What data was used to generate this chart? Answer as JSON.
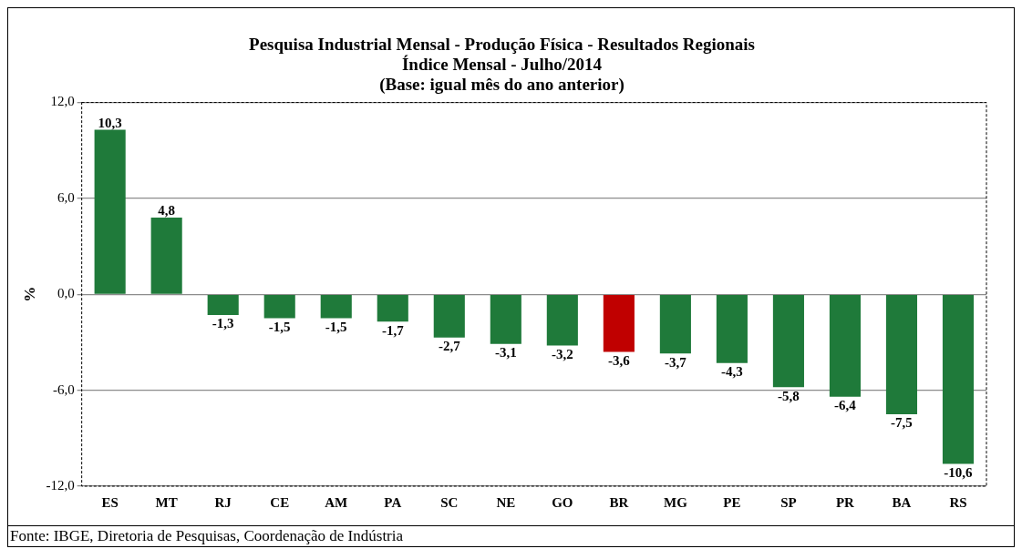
{
  "chart_data": {
    "type": "bar",
    "title": "Pesquisa Industrial Mensal - Produção Física - Resultados Regionais\nÍndice Mensal - Julho/2014\n(Base: igual mês do ano anterior)",
    "ylabel": "%",
    "categories": [
      "ES",
      "MT",
      "RJ",
      "CE",
      "AM",
      "PA",
      "SC",
      "NE",
      "GO",
      "BR",
      "MG",
      "PE",
      "SP",
      "PR",
      "BA",
      "RS"
    ],
    "values": [
      10.3,
      4.8,
      -1.3,
      -1.5,
      -1.5,
      -1.7,
      -2.7,
      -3.1,
      -3.2,
      -3.6,
      -3.7,
      -4.3,
      -5.8,
      -6.4,
      -7.5,
      -10.6
    ],
    "value_labels": [
      "10,3",
      "4,8",
      "-1,3",
      "-1,5",
      "-1,5",
      "-1,7",
      "-2,7",
      "-3,1",
      "-3,2",
      "-3,6",
      "-3,7",
      "-4,3",
      "-5,8",
      "-6,4",
      "-7,5",
      "-10,6"
    ],
    "colors": [
      "#1f7a3a",
      "#1f7a3a",
      "#1f7a3a",
      "#1f7a3a",
      "#1f7a3a",
      "#1f7a3a",
      "#1f7a3a",
      "#1f7a3a",
      "#1f7a3a",
      "#c00000",
      "#1f7a3a",
      "#1f7a3a",
      "#1f7a3a",
      "#1f7a3a",
      "#1f7a3a",
      "#1f7a3a"
    ],
    "ylim": [
      -12,
      12
    ],
    "yticks": [
      {
        "value": -12,
        "label": "-12,0"
      },
      {
        "value": -6,
        "label": "-6,0"
      },
      {
        "value": 0,
        "label": "0,0"
      },
      {
        "value": 6,
        "label": "6,0"
      },
      {
        "value": 12,
        "label": "12,0"
      }
    ],
    "grid": "y",
    "legend": false,
    "annotations": [
      "Fonte: IBGE, Diretoria de Pesquisas, Coordenação de Indústria"
    ]
  }
}
